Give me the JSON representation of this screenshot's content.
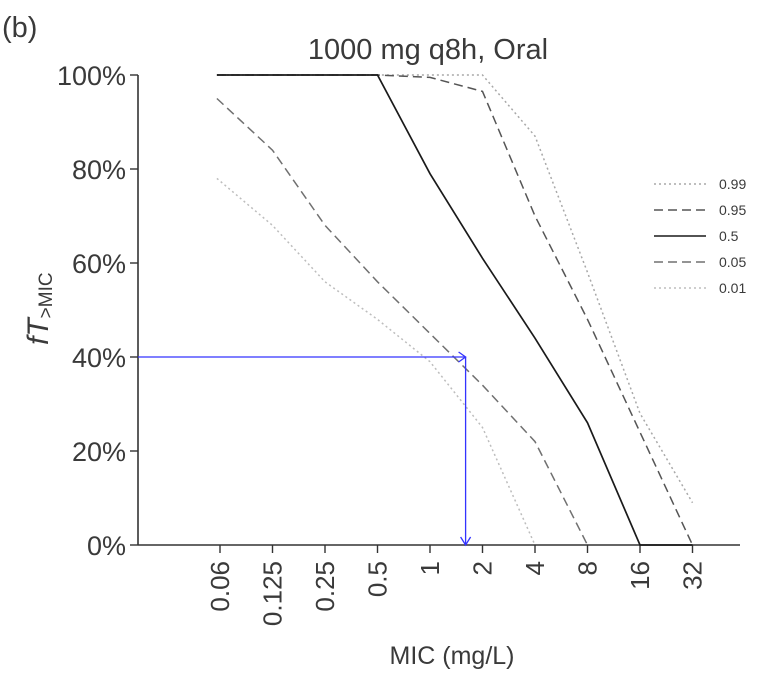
{
  "panel_label": "(b)",
  "chart_data": {
    "type": "line",
    "title": "1000 mg q8h, Oral",
    "xlabel": "MIC (mg/L)",
    "ylabel_main": "fT",
    "ylabel_sub": ">MIC",
    "categories": [
      "0.06",
      "0.125",
      "0.25",
      "0.5",
      "1",
      "2",
      "4",
      "8",
      "16",
      "32"
    ],
    "y_ticks": [
      "0%",
      "20%",
      "40%",
      "60%",
      "80%",
      "100%"
    ],
    "ylim": [
      0,
      100
    ],
    "legend_position": "right",
    "series": [
      {
        "name": "0.99",
        "style": "dotted",
        "color": "#a8a8a8",
        "x": [
          0.06,
          0.125,
          0.25,
          0.5,
          1,
          2,
          4,
          8,
          16,
          32
        ],
        "values": [
          100,
          100,
          100,
          100,
          100,
          100,
          87,
          58,
          28,
          9
        ]
      },
      {
        "name": "0.95",
        "style": "dashed",
        "color": "#555555",
        "x": [
          0.06,
          0.125,
          0.25,
          0.5,
          1,
          2,
          4,
          8,
          16,
          32
        ],
        "values": [
          100,
          100,
          100,
          100,
          99.5,
          96.5,
          70,
          48,
          24,
          0
        ]
      },
      {
        "name": "0.5",
        "style": "solid",
        "color": "#1a1a1a",
        "x": [
          0.06,
          0.125,
          0.25,
          0.5,
          1,
          2,
          4,
          8,
          16,
          32
        ],
        "values": [
          100,
          100,
          100,
          100,
          79,
          61,
          44,
          26,
          0,
          0
        ]
      },
      {
        "name": "0.05",
        "style": "dashed",
        "color": "#707070",
        "x": [
          0.06,
          0.125,
          0.25,
          0.5,
          1,
          2,
          4,
          8
        ],
        "values": [
          95,
          84,
          68,
          56,
          45,
          34,
          22,
          0
        ]
      },
      {
        "name": "0.01",
        "style": "dotted",
        "color": "#bdbdbd",
        "x": [
          0.06,
          0.125,
          0.25,
          0.5,
          1,
          2,
          4
        ],
        "values": [
          78,
          68,
          56,
          48,
          39,
          25,
          0
        ]
      }
    ],
    "annotation": {
      "color": "#3333ff",
      "mic": 1.6,
      "fT": 40
    }
  }
}
